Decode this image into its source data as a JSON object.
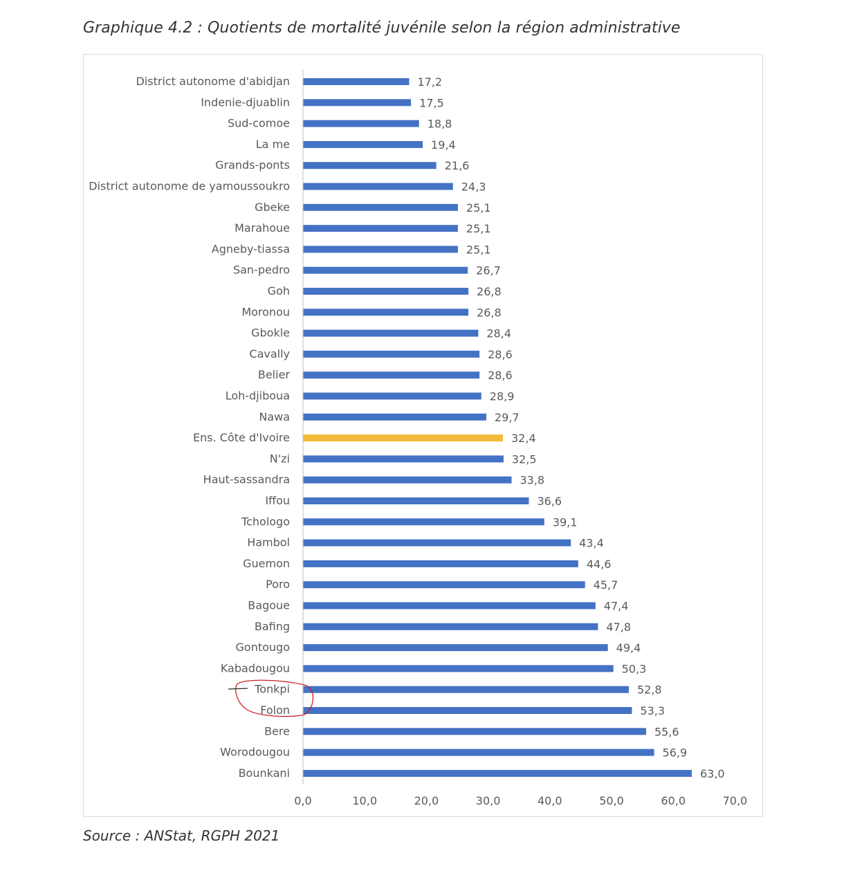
{
  "title": "Graphique 4.2 : Quotients de mortalité juvénile selon la région administrative",
  "source": "Source : ANStat, RGPH 2021",
  "colors": {
    "bar": "#4472c4",
    "highlight": "#f4b93a",
    "axis": "#bfbfbf",
    "text": "#595959",
    "annotation": "#cc2222"
  },
  "chart_data": {
    "type": "bar",
    "orientation": "horizontal",
    "title": "",
    "xlabel": "",
    "ylabel": "",
    "xlim": [
      0,
      70
    ],
    "x_ticks": [
      "0,0",
      "10,0",
      "20,0",
      "30,0",
      "40,0",
      "50,0",
      "60,0",
      "70,0"
    ],
    "grid": false,
    "legend": "none",
    "categories": [
      "District autonome d'abidjan",
      "Indenie-djuablin",
      "Sud-comoe",
      "La me",
      "Grands-ponts",
      "District autonome de yamoussoukro",
      "Gbeke",
      "Marahoue",
      "Agneby-tiassa",
      "San-pedro",
      "Goh",
      "Moronou",
      "Gbokle",
      "Cavally",
      "Belier",
      "Loh-djiboua",
      "Nawa",
      "Ens. Côte d'Ivoire",
      "N'zi",
      "Haut-sassandra",
      "Iffou",
      "Tchologo",
      "Hambol",
      "Guemon",
      "Poro",
      "Bagoue",
      "Bafing",
      "Gontougo",
      "Kabadougou",
      "Tonkpi",
      "Folon",
      "Bere",
      "Worodougou",
      "Bounkani"
    ],
    "values": [
      17.2,
      17.5,
      18.8,
      19.4,
      21.6,
      24.3,
      25.1,
      25.1,
      25.1,
      26.7,
      26.8,
      26.8,
      28.4,
      28.6,
      28.6,
      28.9,
      29.7,
      32.4,
      32.5,
      33.8,
      36.6,
      39.1,
      43.4,
      44.6,
      45.7,
      47.4,
      47.8,
      49.4,
      50.3,
      52.8,
      53.3,
      55.6,
      56.9,
      63.0
    ],
    "data_labels": [
      "17,2",
      "17,5",
      "18,8",
      "19,4",
      "21,6",
      "24,3",
      "25,1",
      "25,1",
      "25,1",
      "26,7",
      "26,8",
      "26,8",
      "28,4",
      "28,6",
      "28,6",
      "28,9",
      "29,7",
      "32,4",
      "32,5",
      "33,8",
      "36,6",
      "39,1",
      "43,4",
      "44,6",
      "45,7",
      "47,4",
      "47,8",
      "49,4",
      "50,3",
      "52,8",
      "53,3",
      "55,6",
      "56,9",
      "63,0"
    ],
    "highlight_category": "Ens. Côte d'Ivoire"
  }
}
